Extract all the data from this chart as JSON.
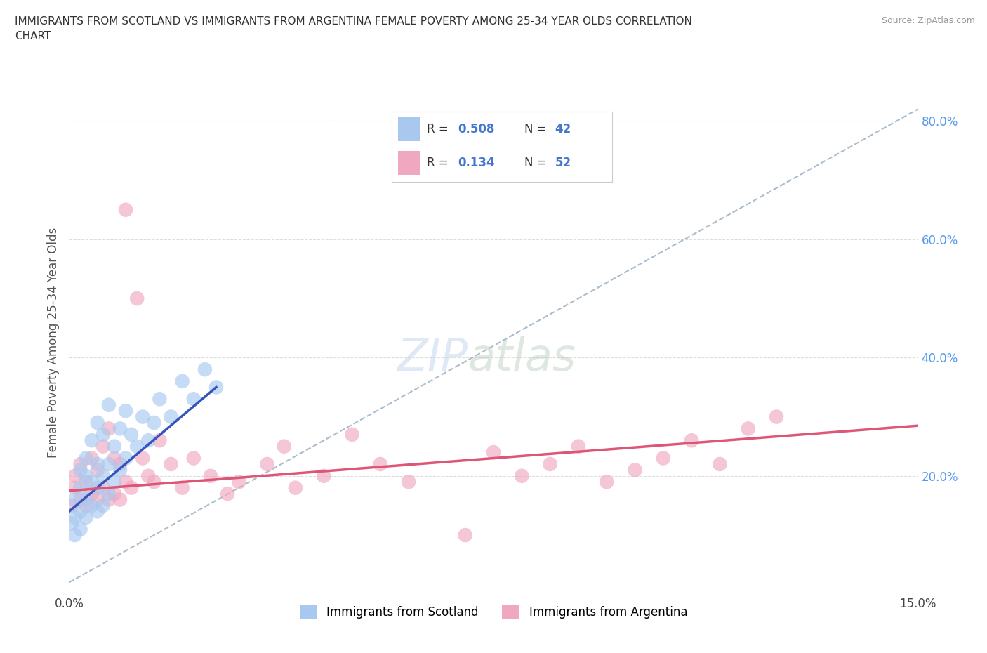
{
  "title": "IMMIGRANTS FROM SCOTLAND VS IMMIGRANTS FROM ARGENTINA FEMALE POVERTY AMONG 25-34 YEAR OLDS CORRELATION\nCHART",
  "source": "Source: ZipAtlas.com",
  "ylabel": "Female Poverty Among 25-34 Year Olds",
  "xlim": [
    0.0,
    0.15
  ],
  "ylim": [
    0.0,
    0.85
  ],
  "xtick_positions": [
    0.0,
    0.05,
    0.1,
    0.15
  ],
  "xticklabels": [
    "0.0%",
    "",
    "",
    "15.0%"
  ],
  "ytick_right_labels": [
    "",
    "20.0%",
    "40.0%",
    "60.0%",
    "80.0%"
  ],
  "ytick_right_positions": [
    0.0,
    0.2,
    0.4,
    0.6,
    0.8
  ],
  "scotland_color": "#a8c8f0",
  "argentina_color": "#f0a8c0",
  "scotland_line_color": "#3355bb",
  "argentina_line_color": "#dd5577",
  "dash_line_color": "#aabbcc",
  "watermark_color": "#ccddeeff",
  "background_color": "#ffffff",
  "grid_color": "#dddddd",
  "legend_label_scotland": "Immigrants from Scotland",
  "legend_label_argentina": "Immigrants from Argentina",
  "scotland_x": [
    0.0005,
    0.001,
    0.001,
    0.001,
    0.002,
    0.002,
    0.002,
    0.002,
    0.003,
    0.003,
    0.003,
    0.003,
    0.004,
    0.004,
    0.004,
    0.005,
    0.005,
    0.005,
    0.005,
    0.006,
    0.006,
    0.006,
    0.007,
    0.007,
    0.007,
    0.008,
    0.008,
    0.009,
    0.009,
    0.01,
    0.01,
    0.011,
    0.012,
    0.013,
    0.014,
    0.015,
    0.016,
    0.018,
    0.02,
    0.022,
    0.024,
    0.026
  ],
  "scotland_y": [
    0.12,
    0.1,
    0.13,
    0.16,
    0.11,
    0.14,
    0.18,
    0.21,
    0.13,
    0.16,
    0.2,
    0.23,
    0.15,
    0.19,
    0.26,
    0.14,
    0.18,
    0.22,
    0.29,
    0.15,
    0.2,
    0.27,
    0.17,
    0.22,
    0.32,
    0.19,
    0.25,
    0.21,
    0.28,
    0.23,
    0.31,
    0.27,
    0.25,
    0.3,
    0.26,
    0.29,
    0.33,
    0.3,
    0.36,
    0.33,
    0.38,
    0.35
  ],
  "argentina_x": [
    0.0005,
    0.001,
    0.001,
    0.002,
    0.002,
    0.003,
    0.003,
    0.004,
    0.004,
    0.005,
    0.005,
    0.006,
    0.006,
    0.007,
    0.007,
    0.008,
    0.008,
    0.009,
    0.009,
    0.01,
    0.01,
    0.011,
    0.012,
    0.013,
    0.014,
    0.015,
    0.016,
    0.018,
    0.02,
    0.022,
    0.025,
    0.028,
    0.03,
    0.035,
    0.038,
    0.04,
    0.045,
    0.05,
    0.055,
    0.06,
    0.07,
    0.075,
    0.08,
    0.085,
    0.09,
    0.095,
    0.1,
    0.105,
    0.11,
    0.115,
    0.12,
    0.125
  ],
  "argentina_y": [
    0.15,
    0.18,
    0.2,
    0.16,
    0.22,
    0.15,
    0.19,
    0.17,
    0.23,
    0.16,
    0.21,
    0.18,
    0.25,
    0.16,
    0.28,
    0.17,
    0.23,
    0.16,
    0.22,
    0.19,
    0.65,
    0.18,
    0.5,
    0.23,
    0.2,
    0.19,
    0.26,
    0.22,
    0.18,
    0.23,
    0.2,
    0.17,
    0.19,
    0.22,
    0.25,
    0.18,
    0.2,
    0.27,
    0.22,
    0.19,
    0.1,
    0.24,
    0.2,
    0.22,
    0.25,
    0.19,
    0.21,
    0.23,
    0.26,
    0.22,
    0.28,
    0.3
  ],
  "scotland_line_x": [
    0.0,
    0.026
  ],
  "scotland_line_y": [
    0.14,
    0.35
  ],
  "argentina_line_x": [
    0.0,
    0.15
  ],
  "argentina_line_y": [
    0.175,
    0.285
  ],
  "dash_line_x": [
    0.0,
    0.15
  ],
  "dash_line_y": [
    0.02,
    0.82
  ]
}
